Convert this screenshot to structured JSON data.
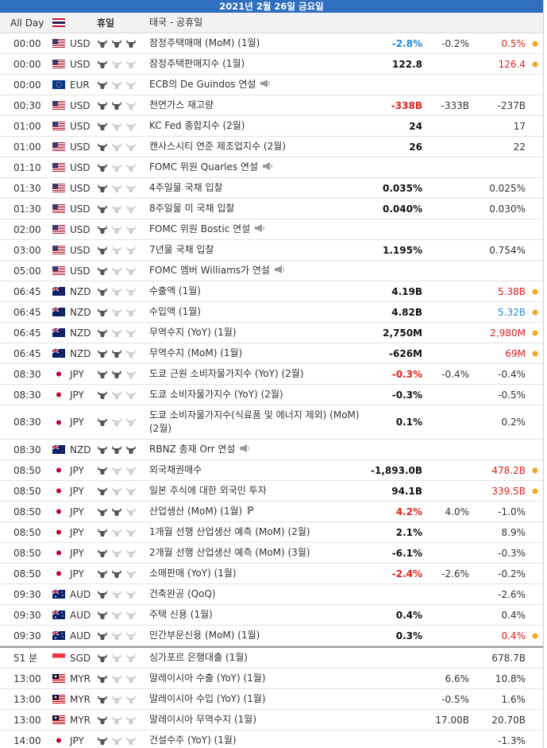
{
  "header": {
    "title": "2021년 2월 26일 금요일"
  },
  "holiday": {
    "time": "All Day",
    "label": "휴일",
    "event": "태국 - 공휴일"
  },
  "rows": [
    {
      "time": "00:00",
      "currency": "USD",
      "importance": 3,
      "event": "잠정주택매매 (MoM) (1월)",
      "actual": "-2.8%",
      "actual_tone": "blue",
      "forecast": "-0.2%",
      "previous": "0.5%",
      "previous_tone": "red",
      "dot": true
    },
    {
      "time": "00:00",
      "currency": "USD",
      "importance": 1,
      "event": "잠정주택판매지수 (1월)",
      "actual": "122.8",
      "forecast": null,
      "previous": "126.4",
      "previous_tone": "red",
      "dot": true
    },
    {
      "time": "00:00",
      "currency": "EUR",
      "importance": 1,
      "event": "ECB의 De Guindos 연설",
      "icon": "speech",
      "actual": null,
      "forecast": null,
      "previous": null
    },
    {
      "time": "00:30",
      "currency": "USD",
      "importance": 2,
      "event": "천연가스 재고량",
      "actual": "-338B",
      "actual_tone": "red",
      "forecast": "-333B",
      "previous": "-237B"
    },
    {
      "time": "01:00",
      "currency": "USD",
      "importance": 1,
      "event": "KC Fed 종합지수 (2월)",
      "actual": "24",
      "forecast": null,
      "previous": "17"
    },
    {
      "time": "01:00",
      "currency": "USD",
      "importance": 1,
      "event": "캔사스시티 연준 제조업지수 (2월)",
      "actual": "26",
      "forecast": null,
      "previous": "22"
    },
    {
      "time": "01:10",
      "currency": "USD",
      "importance": 1,
      "event": "FOMC 위원 Quarles 연설",
      "icon": "speech",
      "actual": null,
      "forecast": null,
      "previous": null
    },
    {
      "time": "01:30",
      "currency": "USD",
      "importance": 1,
      "event": "4주일물 국채 입찰",
      "actual": "0.035%",
      "forecast": null,
      "previous": "0.025%"
    },
    {
      "time": "01:30",
      "currency": "USD",
      "importance": 1,
      "event": "8주일물 미 국채 입찰",
      "actual": "0.040%",
      "forecast": null,
      "previous": "0.030%"
    },
    {
      "time": "02:00",
      "currency": "USD",
      "importance": 1,
      "event": "FOMC 위원 Bostic 연설",
      "icon": "speech",
      "actual": null,
      "forecast": null,
      "previous": null
    },
    {
      "time": "03:00",
      "currency": "USD",
      "importance": 1,
      "event": "7년물 국채 입찰",
      "actual": "1.195%",
      "forecast": null,
      "previous": "0.754%"
    },
    {
      "time": "05:00",
      "currency": "USD",
      "importance": 1,
      "event": "FOMC 멤버 Williams가 연설",
      "icon": "speech",
      "actual": null,
      "forecast": null,
      "previous": null
    },
    {
      "time": "06:45",
      "currency": "NZD",
      "importance": 1,
      "event": "수출액 (1월)",
      "actual": "4.19B",
      "forecast": null,
      "previous": "5.38B",
      "previous_tone": "red",
      "dot": true
    },
    {
      "time": "06:45",
      "currency": "NZD",
      "importance": 1,
      "event": "수입액 (1월)",
      "actual": "4.82B",
      "forecast": null,
      "previous": "5.32B",
      "previous_tone": "blue",
      "dot": true
    },
    {
      "time": "06:45",
      "currency": "NZD",
      "importance": 1,
      "event": "무역수지 (YoY) (1월)",
      "actual": "2,750M",
      "forecast": null,
      "previous": "2,980M",
      "previous_tone": "red",
      "dot": true
    },
    {
      "time": "06:45",
      "currency": "NZD",
      "importance": 2,
      "event": "무역수지 (MoM) (1월)",
      "actual": "-626M",
      "forecast": null,
      "previous": "69M",
      "previous_tone": "red",
      "dot": true
    },
    {
      "time": "08:30",
      "currency": "JPY",
      "importance": 2,
      "event": "도쿄 근원 소비자물가지수 (YoY) (2월)",
      "actual": "-0.3%",
      "actual_tone": "red",
      "forecast": "-0.4%",
      "previous": "-0.4%"
    },
    {
      "time": "08:30",
      "currency": "JPY",
      "importance": 1,
      "event": "도쿄 소비자물가지수 (YoY) (2월)",
      "actual": "-0.3%",
      "forecast": null,
      "previous": "-0.5%"
    },
    {
      "time": "08:30",
      "currency": "JPY",
      "importance": 1,
      "event": "도쿄 소비자물가지수(식료품 및 에너지 제외) (MoM) (2월)",
      "actual": "0.1%",
      "forecast": null,
      "previous": "0.2%"
    },
    {
      "time": "08:30",
      "currency": "NZD",
      "importance": 3,
      "event": "RBNZ 총재 Orr 연설",
      "icon": "speech",
      "actual": null,
      "forecast": null,
      "previous": null
    },
    {
      "time": "08:50",
      "currency": "JPY",
      "importance": 1,
      "event": "외국채권매수",
      "actual": "-1,893.0B",
      "forecast": null,
      "previous": "478.2B",
      "previous_tone": "red",
      "dot": true
    },
    {
      "time": "08:50",
      "currency": "JPY",
      "importance": 1,
      "event": "일본 주식에 대한 외국인 투자",
      "actual": "94.1B",
      "forecast": null,
      "previous": "339.5B",
      "previous_tone": "red",
      "dot": true
    },
    {
      "time": "08:50",
      "currency": "JPY",
      "importance": 2,
      "event": "산업생산 (MoM) (1월)",
      "icon": "preliminary",
      "actual": "4.2%",
      "actual_tone": "red",
      "forecast": "4.0%",
      "previous": "-1.0%"
    },
    {
      "time": "08:50",
      "currency": "JPY",
      "importance": 1,
      "event": "1개월 선행 산업생산 예측 (MoM) (2월)",
      "actual": "2.1%",
      "forecast": null,
      "previous": "8.9%"
    },
    {
      "time": "08:50",
      "currency": "JPY",
      "importance": 1,
      "event": "2개월 선행 산업생산 예측 (MoM) (3월)",
      "actual": "-6.1%",
      "forecast": null,
      "previous": "-0.3%"
    },
    {
      "time": "08:50",
      "currency": "JPY",
      "importance": 2,
      "event": "소매판매 (YoY) (1월)",
      "actual": "-2.4%",
      "actual_tone": "red",
      "forecast": "-2.6%",
      "previous": "-0.2%"
    },
    {
      "time": "09:30",
      "currency": "AUD",
      "importance": 1,
      "event": "건축완공 (QoQ)",
      "actual": null,
      "forecast": null,
      "previous": "-2.6%"
    },
    {
      "time": "09:30",
      "currency": "AUD",
      "importance": 1,
      "event": "주택 신용 (1월)",
      "actual": "0.4%",
      "forecast": null,
      "previous": "0.4%"
    },
    {
      "time": "09:30",
      "currency": "AUD",
      "importance": 1,
      "event": "민간부문신용 (MoM) (1월)",
      "actual": "0.3%",
      "forecast": null,
      "previous": "0.4%",
      "previous_tone": "red",
      "dot": true
    },
    {
      "time": "51 분",
      "currency": "SGD",
      "importance": 1,
      "event": "싱가포르 은행대출 (1월)",
      "actual": null,
      "forecast": null,
      "previous": "678.7B"
    },
    {
      "time": "13:00",
      "currency": "MYR",
      "importance": 1,
      "event": "말레이시아 수출 (YoY) (1월)",
      "actual": null,
      "forecast": "6.6%",
      "previous": "10.8%"
    },
    {
      "time": "13:00",
      "currency": "MYR",
      "importance": 1,
      "event": "말레이시아 수입 (YoY) (1월)",
      "actual": null,
      "forecast": "-0.5%",
      "previous": "1.6%"
    },
    {
      "time": "13:00",
      "currency": "MYR",
      "importance": 1,
      "event": "말레이시아 무역수지 (1월)",
      "actual": null,
      "forecast": "17.00B",
      "previous": "20.70B"
    },
    {
      "time": "14:00",
      "currency": "JPY",
      "importance": 1,
      "event": "건설수주 (YoY) (1월)",
      "actual": null,
      "forecast": null,
      "previous": "-1.3%"
    }
  ]
}
